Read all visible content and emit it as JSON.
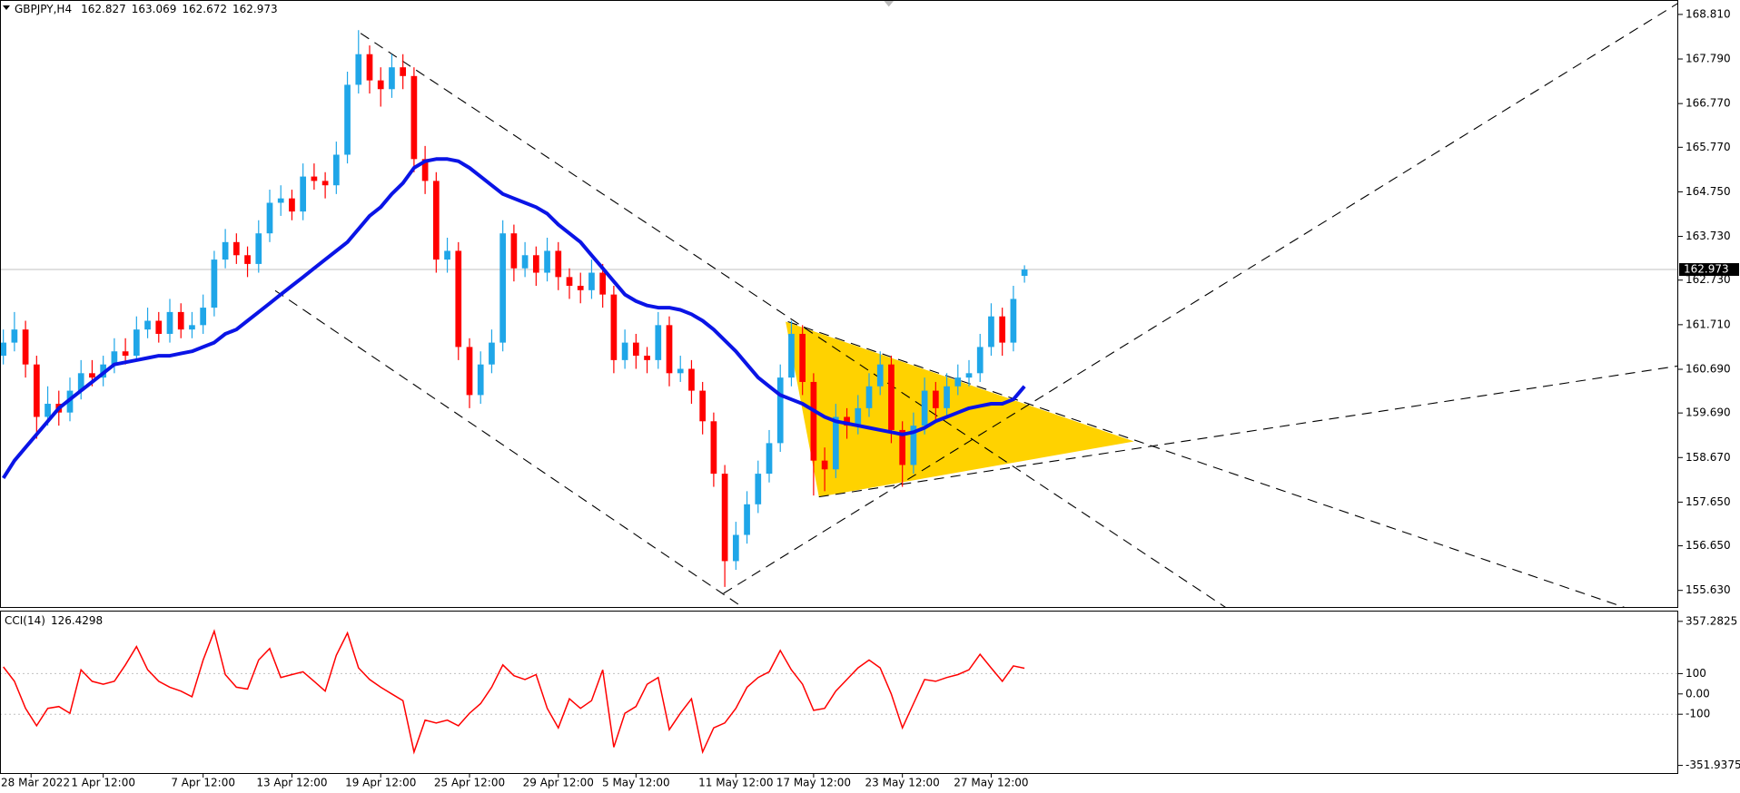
{
  "chart_data": [
    {
      "type": "candlestick",
      "symbol": "GBPJPY,H4",
      "up_color": "#1fa6e8",
      "down_color": "#ff0000",
      "open": [
        161.0,
        161.3,
        161.6,
        160.8,
        159.6,
        159.9,
        159.7,
        160.2,
        160.6,
        160.5,
        160.8,
        161.1,
        161.0,
        161.6,
        161.8,
        161.5,
        162.0,
        161.6,
        161.7,
        162.1,
        163.2,
        163.6,
        163.3,
        163.1,
        163.8,
        164.5,
        164.6,
        164.3,
        165.1,
        165.0,
        164.9,
        165.6,
        167.2,
        167.9,
        167.3,
        167.1,
        167.6,
        167.4,
        165.5,
        165.0,
        163.2,
        163.4,
        161.2,
        160.1,
        160.8,
        161.3,
        163.8,
        163.0,
        163.3,
        162.9,
        163.4,
        162.8,
        162.6,
        162.5,
        162.9,
        162.4,
        160.9,
        161.3,
        161.0,
        160.9,
        161.7,
        160.6,
        160.7,
        160.2,
        159.5,
        158.3,
        156.3,
        156.9,
        157.6,
        158.3,
        159.0,
        160.5,
        161.5,
        160.4,
        158.6,
        158.4,
        159.6,
        159.4,
        159.8,
        160.3,
        160.8,
        159.3,
        158.5,
        159.4,
        160.2,
        159.8,
        160.3,
        160.5,
        160.6,
        161.2,
        161.9,
        161.3,
        162.827
      ],
      "high": [
        161.6,
        162.0,
        161.8,
        161.0,
        160.3,
        160.2,
        160.5,
        160.9,
        160.9,
        161.0,
        161.4,
        161.4,
        161.9,
        162.1,
        162.0,
        162.3,
        162.2,
        162.0,
        162.4,
        163.4,
        163.9,
        163.8,
        163.5,
        164.1,
        164.8,
        164.9,
        164.8,
        165.4,
        165.4,
        165.2,
        165.9,
        167.5,
        168.45,
        168.1,
        167.6,
        167.9,
        167.9,
        167.6,
        165.8,
        165.2,
        163.7,
        163.6,
        161.4,
        161.1,
        161.6,
        164.1,
        164.0,
        163.6,
        163.5,
        163.7,
        163.6,
        163.0,
        162.9,
        163.2,
        163.1,
        162.6,
        161.6,
        161.5,
        161.2,
        162.0,
        161.9,
        161.0,
        160.9,
        160.4,
        159.7,
        158.5,
        157.2,
        157.9,
        158.6,
        159.3,
        160.8,
        161.8,
        161.7,
        160.6,
        158.9,
        159.9,
        159.8,
        160.1,
        160.6,
        161.1,
        161.0,
        159.5,
        159.7,
        160.5,
        160.4,
        160.6,
        160.8,
        160.9,
        161.5,
        162.2,
        162.1,
        162.6,
        163.069
      ],
      "low": [
        160.8,
        161.1,
        160.5,
        159.1,
        159.4,
        159.4,
        159.5,
        160.0,
        160.3,
        160.3,
        160.6,
        160.8,
        160.9,
        161.4,
        161.3,
        161.3,
        161.4,
        161.4,
        161.5,
        161.9,
        163.0,
        163.1,
        162.8,
        162.9,
        163.6,
        164.2,
        164.1,
        164.1,
        164.8,
        164.6,
        164.7,
        165.4,
        167.0,
        167.0,
        166.7,
        166.9,
        167.1,
        165.2,
        164.7,
        162.9,
        162.9,
        160.9,
        159.8,
        159.9,
        160.6,
        161.1,
        162.7,
        162.8,
        162.6,
        162.7,
        162.5,
        162.3,
        162.2,
        162.3,
        162.1,
        160.6,
        160.7,
        160.7,
        160.6,
        160.7,
        160.3,
        160.4,
        159.9,
        159.2,
        158.0,
        155.71,
        156.1,
        156.7,
        157.4,
        158.1,
        158.8,
        160.3,
        160.1,
        157.8,
        157.9,
        158.2,
        159.1,
        159.2,
        159.6,
        160.1,
        159.0,
        158.0,
        158.3,
        159.2,
        159.5,
        159.6,
        160.1,
        160.3,
        160.4,
        161.0,
        161.0,
        161.1,
        162.672
      ],
      "close": [
        161.3,
        161.6,
        160.8,
        159.6,
        159.9,
        159.7,
        160.2,
        160.6,
        160.5,
        160.8,
        161.1,
        161.0,
        161.6,
        161.8,
        161.5,
        162.0,
        161.6,
        161.7,
        162.1,
        163.2,
        163.6,
        163.3,
        163.1,
        163.8,
        164.5,
        164.6,
        164.3,
        165.1,
        165.0,
        164.9,
        165.6,
        167.2,
        167.9,
        167.3,
        167.1,
        167.6,
        167.4,
        165.5,
        165.0,
        163.2,
        163.4,
        161.2,
        160.1,
        160.8,
        161.3,
        163.8,
        163.0,
        163.3,
        162.9,
        163.4,
        162.8,
        162.6,
        162.5,
        162.9,
        162.4,
        160.9,
        161.3,
        161.0,
        160.9,
        161.7,
        160.6,
        160.7,
        160.2,
        159.5,
        158.3,
        156.3,
        156.9,
        157.6,
        158.3,
        159.0,
        160.5,
        161.5,
        160.4,
        158.6,
        158.4,
        159.6,
        159.4,
        159.8,
        160.3,
        160.8,
        159.3,
        158.5,
        159.4,
        160.2,
        159.8,
        160.3,
        160.5,
        160.6,
        161.2,
        161.9,
        161.3,
        162.3,
        162.973
      ],
      "moving_average": {
        "color": "#0a14e6",
        "values": [
          158.2,
          158.6,
          158.9,
          159.2,
          159.5,
          159.8,
          160.0,
          160.2,
          160.4,
          160.6,
          160.8,
          160.85,
          160.9,
          160.95,
          161.0,
          161.0,
          161.05,
          161.1,
          161.2,
          161.3,
          161.5,
          161.6,
          161.8,
          162.0,
          162.2,
          162.4,
          162.6,
          162.8,
          163.0,
          163.2,
          163.4,
          163.6,
          163.9,
          164.2,
          164.4,
          164.7,
          164.95,
          165.3,
          165.45,
          165.5,
          165.5,
          165.45,
          165.3,
          165.1,
          164.9,
          164.7,
          164.6,
          164.5,
          164.4,
          164.25,
          164.0,
          163.8,
          163.6,
          163.3,
          163.0,
          162.7,
          162.4,
          162.25,
          162.15,
          162.1,
          162.1,
          162.05,
          161.95,
          161.8,
          161.6,
          161.35,
          161.1,
          160.8,
          160.5,
          160.3,
          160.1,
          160.0,
          159.9,
          159.75,
          159.6,
          159.5,
          159.45,
          159.4,
          159.35,
          159.3,
          159.25,
          159.2,
          159.25,
          159.35,
          159.5,
          159.6,
          159.7,
          159.8,
          159.85,
          159.9,
          159.9,
          160.0,
          160.3
        ]
      },
      "xlim": [
        -0.3,
        150.9
      ],
      "ylim": [
        155.25,
        169.14
      ],
      "yticks": [
        {
          "value": 168.81,
          "label": "168.810"
        },
        {
          "value": 167.79,
          "label": "167.790"
        },
        {
          "value": 166.77,
          "label": "166.770"
        },
        {
          "value": 165.77,
          "label": "165.770"
        },
        {
          "value": 164.75,
          "label": "164.750"
        },
        {
          "value": 163.73,
          "label": "163.730"
        },
        {
          "value": 162.73,
          "label": "162.730"
        },
        {
          "value": 161.71,
          "label": "161.710"
        },
        {
          "value": 160.69,
          "label": "160.690"
        },
        {
          "value": 159.69,
          "label": "159.690"
        },
        {
          "value": 158.67,
          "label": "158.670"
        },
        {
          "value": 157.65,
          "label": "157.650"
        },
        {
          "value": 156.65,
          "label": "156.650"
        },
        {
          "value": 155.63,
          "label": "155.630"
        }
      ],
      "xticks": [
        {
          "value": 2.5,
          "label": "28 Mar 2022"
        },
        {
          "value": 9,
          "label": "1 Apr 12:00"
        },
        {
          "value": 18,
          "label": "7 Apr 12:00"
        },
        {
          "value": 26,
          "label": "13 Apr 12:00"
        },
        {
          "value": 34,
          "label": "19 Apr 12:00"
        },
        {
          "value": 42,
          "label": "25 Apr 12:00"
        },
        {
          "value": 50,
          "label": "29 Apr 12:00"
        },
        {
          "value": 57,
          "label": "5 May 12:00"
        },
        {
          "value": 66,
          "label": "11 May 12:00"
        },
        {
          "value": 73,
          "label": "17 May 12:00"
        },
        {
          "value": 81,
          "label": "23 May 12:00"
        },
        {
          "value": 89,
          "label": "27 May 12:00"
        }
      ]
    },
    {
      "type": "line",
      "label": "CCI(14)",
      "color": "#ff0000",
      "values": [
        133,
        62,
        -71,
        -157,
        -71,
        -62,
        -95,
        119,
        62,
        48,
        62,
        143,
        233,
        119,
        62,
        33,
        14,
        -14,
        167,
        309,
        95,
        33,
        24,
        167,
        224,
        81,
        95,
        109,
        62,
        14,
        190,
        300,
        128,
        71,
        33,
        0,
        -33,
        -286,
        -129,
        -143,
        -129,
        -157,
        -95,
        -48,
        33,
        143,
        90,
        71,
        95,
        -71,
        -167,
        -24,
        -71,
        -33,
        119,
        -262,
        -95,
        -62,
        48,
        81,
        -176,
        -95,
        -24,
        -286,
        -167,
        -143,
        -71,
        33,
        81,
        109,
        214,
        119,
        48,
        -81,
        -71,
        14,
        71,
        128,
        167,
        128,
        0,
        -167,
        -48,
        71,
        62,
        81,
        95,
        119,
        195,
        128,
        62,
        138,
        126.4298
      ],
      "xlim": [
        -0.3,
        150.9
      ],
      "ylim": [
        -389.5,
        405.6
      ],
      "yticks": [
        357.2825,
        100,
        {
          "value": 0,
          "label": "0.00"
        },
        -100,
        -351.9375
      ],
      "level_lines": [
        100,
        -100
      ]
    }
  ]
}
